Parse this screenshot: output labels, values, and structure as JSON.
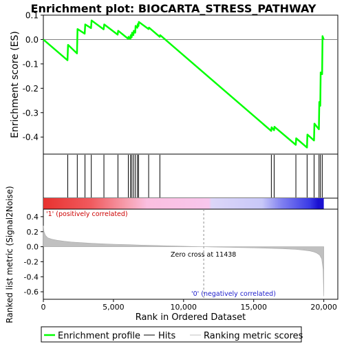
{
  "chart_data": {
    "type": "line",
    "title": "Enrichment plot: BIOCARTA_STRESS_PATHWAY",
    "es_panel": {
      "ylabel": "Enrichment score (ES)",
      "ylim": [
        -0.47,
        0.1
      ],
      "yticks": [
        0.1,
        0.0,
        -0.1,
        -0.2,
        -0.3,
        -0.4
      ],
      "yticklabels": [
        "0.1",
        "0.0",
        "-0.1",
        "-0.2",
        "-0.3",
        "-0.4"
      ],
      "series": [
        {
          "name": "Enrichment profile",
          "color": "#00ff00",
          "x": [
            0,
            1720,
            1760,
            2400,
            2440,
            2950,
            2990,
            3400,
            3440,
            4300,
            4340,
            5300,
            5340,
            6050,
            6080,
            6200,
            6230,
            6300,
            6330,
            6420,
            6450,
            6550,
            6580,
            6700,
            6730,
            6780,
            6810,
            7500,
            7530,
            8300,
            8330,
            16250,
            16280,
            16450,
            16480,
            18000,
            18030,
            18800,
            18830,
            19300,
            19330,
            19650,
            19680,
            19750,
            19780,
            19880,
            19910,
            20000
          ],
          "y": [
            0.0,
            -0.085,
            -0.022,
            -0.057,
            0.043,
            0.024,
            0.062,
            0.047,
            0.078,
            0.042,
            0.062,
            0.02,
            0.036,
            0.003,
            0.011,
            0.002,
            0.018,
            0.009,
            0.028,
            0.018,
            0.036,
            0.028,
            0.056,
            0.048,
            0.063,
            0.055,
            0.072,
            0.043,
            0.049,
            0.011,
            0.018,
            -0.375,
            -0.36,
            -0.372,
            -0.358,
            -0.432,
            -0.405,
            -0.443,
            -0.39,
            -0.414,
            -0.345,
            -0.368,
            -0.256,
            -0.272,
            -0.135,
            -0.142,
            0.014,
            0.0
          ]
        }
      ]
    },
    "hits": {
      "name": "Hits",
      "positions": [
        1740,
        2420,
        2970,
        3420,
        4320,
        5320,
        6060,
        6210,
        6310,
        6430,
        6560,
        6710,
        6790,
        7510,
        8310,
        16260,
        16460,
        18010,
        18810,
        19310,
        19660,
        19760,
        19890
      ]
    },
    "ranking_panel": {
      "ylabel": "Ranked list metric (Signal2Noise)",
      "xlabel": "Rank in Ordered Dataset",
      "ylim": [
        -0.7,
        0.5
      ],
      "yticks": [
        0.4,
        0.2,
        0.0,
        -0.2,
        -0.4,
        -0.6
      ],
      "yticklabels": [
        "0.4",
        "0.2",
        "0.0",
        "-0.2",
        "-0.4",
        "-0.6"
      ],
      "xlim": [
        0,
        21000
      ],
      "xticks": [
        0,
        5000,
        10000,
        15000,
        20000
      ],
      "xticklabels": [
        "0",
        "5,000",
        "10,000",
        "15,000",
        "20,000"
      ],
      "zero_cross_label": "Zero cross at 11438",
      "zero_cross": 11438,
      "pos_label": "'1' (positively correlated)",
      "neg_label": "'0' (negatively correlated)",
      "series": [
        {
          "name": "Ranking metric scores",
          "color": "#c0c0c0",
          "x": [
            0,
            50,
            150,
            300,
            600,
            1000,
            1500,
            2000,
            3000,
            4000,
            5000,
            6000,
            7000,
            8000,
            9000,
            10000,
            11000,
            11438,
            12000,
            13000,
            14000,
            15000,
            16000,
            17000,
            17500,
            18000,
            18500,
            19000,
            19300,
            19500,
            19700,
            19850,
            19950,
            20000
          ],
          "y": [
            0.28,
            0.2,
            0.15,
            0.12,
            0.1,
            0.085,
            0.072,
            0.062,
            0.05,
            0.04,
            0.033,
            0.027,
            0.021,
            0.016,
            0.011,
            0.006,
            0.002,
            0.0,
            -0.003,
            -0.007,
            -0.011,
            -0.015,
            -0.02,
            -0.026,
            -0.03,
            -0.036,
            -0.044,
            -0.056,
            -0.07,
            -0.085,
            -0.11,
            -0.16,
            -0.3,
            -0.66
          ]
        }
      ]
    },
    "legend": {
      "placement": "bottom",
      "entries": [
        {
          "label": "Enrichment profile",
          "color": "#00ff00"
        },
        {
          "label": "Hits",
          "color": "#000000"
        },
        {
          "label": "Ranking metric scores",
          "color": "#c0c0c0"
        }
      ]
    },
    "xlim": [
      0,
      21000
    ]
  }
}
